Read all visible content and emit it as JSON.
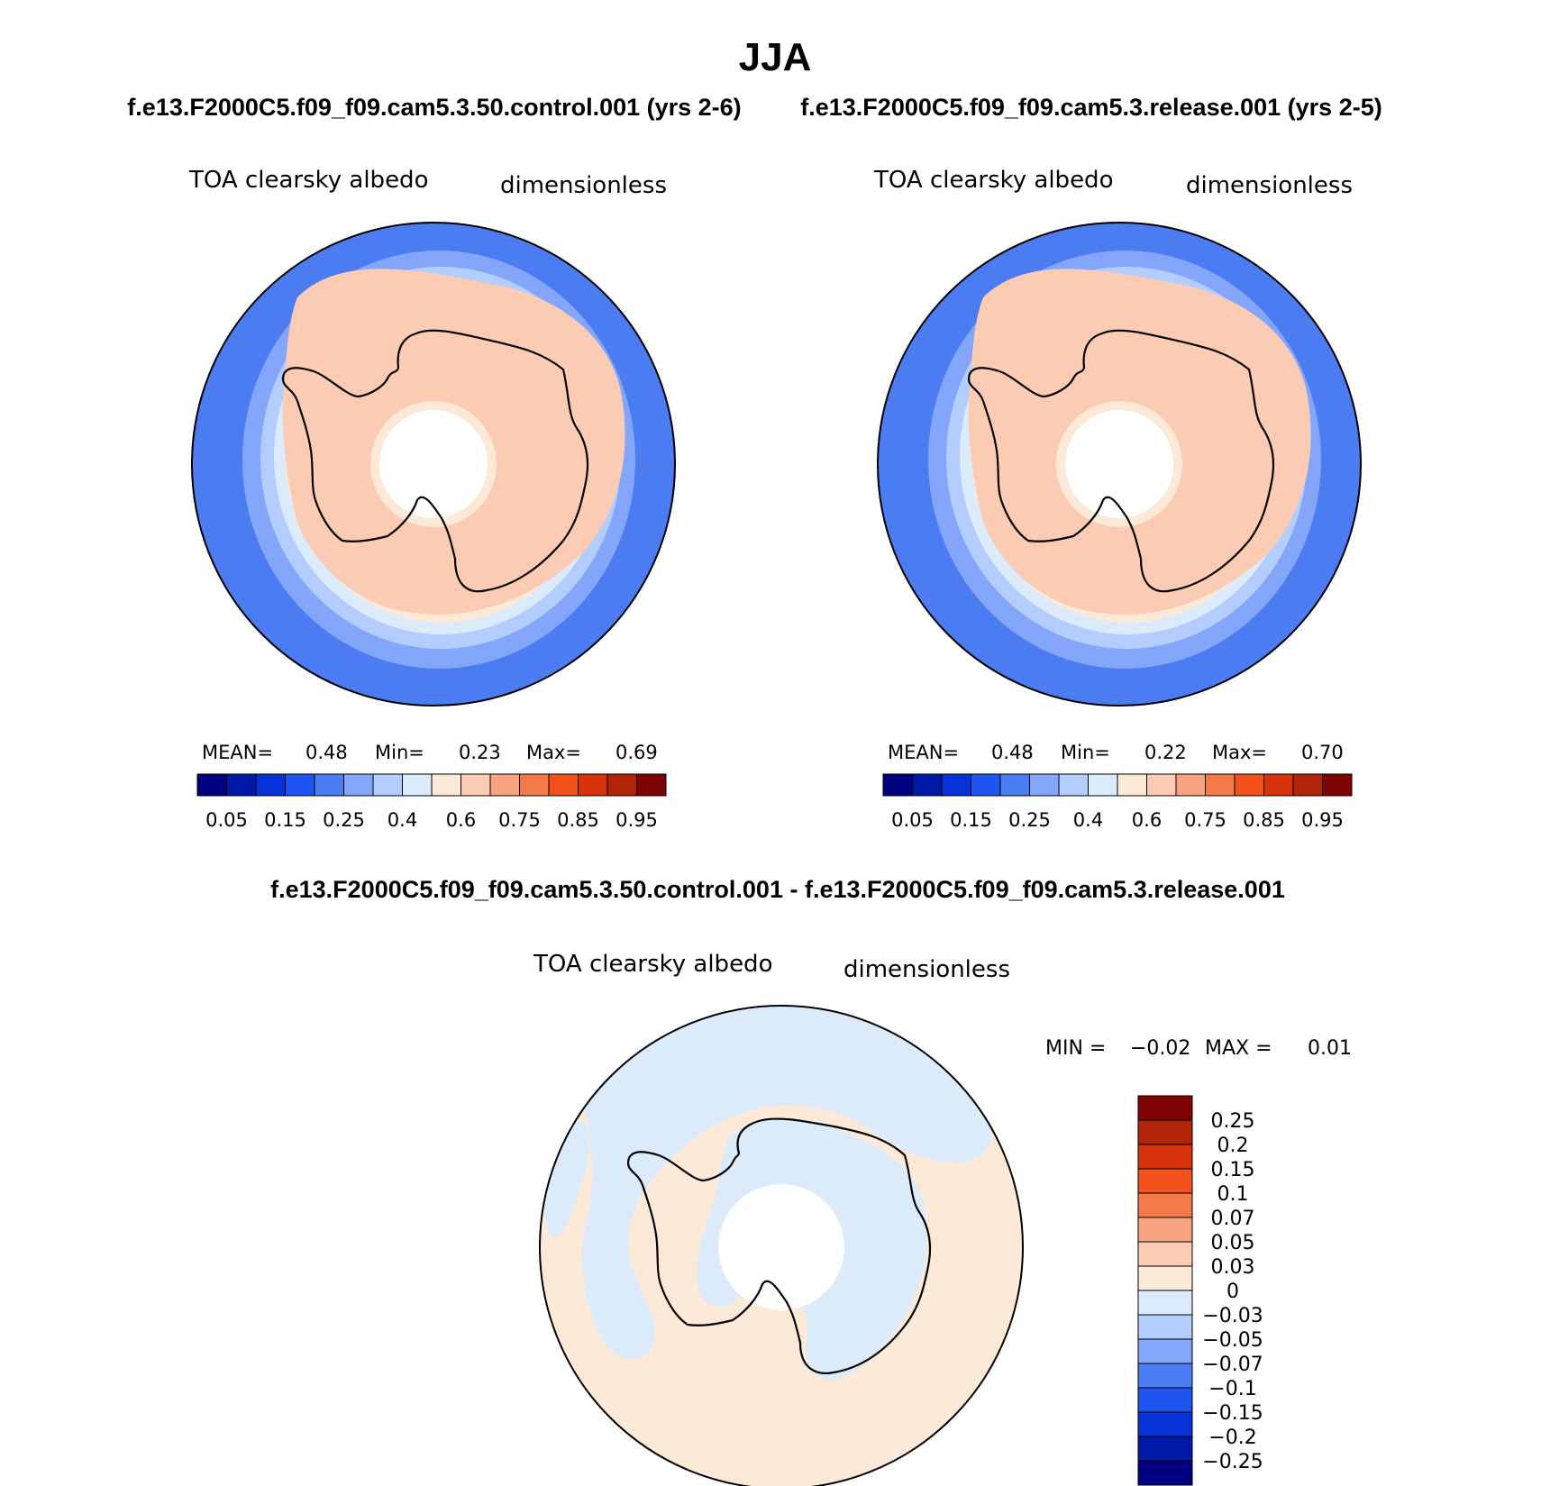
{
  "season": "JJA",
  "case_titles": {
    "left": "f.e13.F2000C5.f09_f09.cam5.3.50.control.001 (yrs 2-6)",
    "right": "f.e13.F2000C5.f09_f09.cam5.3.release.001 (yrs 2-5)",
    "diff": "f.e13.F2000C5.f09_f09.cam5.3.50.control.001 - f.e13.F2000C5.f09_f09.cam5.3.release.001"
  },
  "panels": [
    {
      "id": "control",
      "variable": "TOA clearsky albedo",
      "units": "dimensionless",
      "stats": {
        "mean_label": "MEAN=",
        "mean": "0.48",
        "min_label": "Min=",
        "min": "0.23",
        "max_label": "Max=",
        "max": "0.69"
      }
    },
    {
      "id": "release",
      "variable": "TOA clearsky albedo",
      "units": "dimensionless",
      "stats": {
        "mean_label": "MEAN=",
        "mean": "0.48",
        "min_label": "Min=",
        "min": "0.22",
        "max_label": "Max=",
        "max": "0.70"
      }
    },
    {
      "id": "difference",
      "variable": "TOA clearsky albedo",
      "units": "dimensionless",
      "stats": {
        "min_label": "MIN =",
        "min": "−0.02",
        "max_label": "MAX =",
        "max": "0.01"
      }
    }
  ],
  "abs_colorbar": {
    "colors": [
      "#000080",
      "#0018a8",
      "#0632d8",
      "#1e55f0",
      "#4c7cf2",
      "#83a6fa",
      "#b3cdff",
      "#dcebfb",
      "#fde9d7",
      "#fbcbb3",
      "#f6a47f",
      "#f47b48",
      "#f3501c",
      "#d73209",
      "#b12409",
      "#7f0404"
    ],
    "tick_labels": [
      "0.05",
      "0.15",
      "0.25",
      "0.4",
      "0.6",
      "0.75",
      "0.85",
      "0.95"
    ]
  },
  "diff_colorbar": {
    "colors": [
      "#7f0404",
      "#b12409",
      "#d73209",
      "#f3501c",
      "#f47b48",
      "#f6a47f",
      "#fbcbb3",
      "#fde9d7",
      "#dcebfb",
      "#b3cdff",
      "#83a6fa",
      "#4c7cf2",
      "#1e55f0",
      "#0632d8",
      "#0018a8",
      "#000080"
    ],
    "tick_labels": [
      "0.25",
      "0.2",
      "0.15",
      "0.1",
      "0.07",
      "0.05",
      "0.03",
      "0",
      "−0.03",
      "−0.05",
      "−0.07",
      "−0.1",
      "−0.15",
      "−0.2",
      "−0.25"
    ]
  },
  "map_colors": {
    "sea_ice_outer": "#4c7cf2",
    "ring2": "#83a6fa",
    "ring3": "#b3cdff",
    "ring4": "#dcebfb",
    "ring5": "#fde9d7",
    "continent": "#fbcbb3",
    "diff_positive": "#fde9d7",
    "diff_negative": "#dcebfb"
  }
}
